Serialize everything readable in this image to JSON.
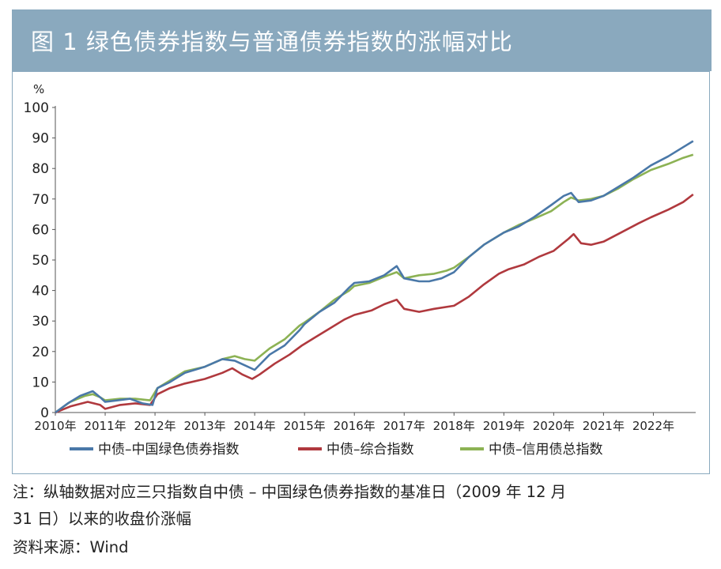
{
  "title": "图 1    绿色债券指数与普通债券指数的涨幅对比",
  "note_line1": "注：纵轴数据对应三只指数自中债 – 中国绿色债券指数的基准日（2009 年 12 月",
  "note_line2": "31 日）以来的收盘价涨幅",
  "source": "资料来源：Wind",
  "chart_data": {
    "type": "line",
    "ylabel": "%",
    "ylim": [
      0,
      100
    ],
    "yticks": [
      0,
      10,
      20,
      30,
      40,
      50,
      60,
      70,
      80,
      90,
      100
    ],
    "xlim": [
      2010,
      2022.85
    ],
    "xticks": [
      "2010年",
      "2011年",
      "2012年",
      "2013年",
      "2014年",
      "2015年",
      "2016年",
      "2017年",
      "2018年",
      "2019年",
      "2020年",
      "2021年",
      "2022年"
    ],
    "grid": false,
    "legend_position": "bottom",
    "series": [
      {
        "name": "中债–中国绿色债券指数",
        "color": "#4a78a8",
        "points": [
          [
            2010.0,
            0
          ],
          [
            2010.25,
            3
          ],
          [
            2010.5,
            5.5
          ],
          [
            2010.75,
            7
          ],
          [
            2010.9,
            5
          ],
          [
            2011.0,
            3.5
          ],
          [
            2011.25,
            4
          ],
          [
            2011.5,
            4.5
          ],
          [
            2011.75,
            3
          ],
          [
            2011.95,
            2.5
          ],
          [
            2012.05,
            8
          ],
          [
            2012.3,
            10
          ],
          [
            2012.6,
            13
          ],
          [
            2013.0,
            15
          ],
          [
            2013.35,
            17.5
          ],
          [
            2013.6,
            17
          ],
          [
            2013.8,
            15.5
          ],
          [
            2014.0,
            14
          ],
          [
            2014.3,
            19
          ],
          [
            2014.6,
            22
          ],
          [
            2014.9,
            27
          ],
          [
            2015.0,
            29
          ],
          [
            2015.3,
            33
          ],
          [
            2015.6,
            36
          ],
          [
            2015.9,
            41
          ],
          [
            2016.0,
            42.5
          ],
          [
            2016.3,
            43
          ],
          [
            2016.6,
            45
          ],
          [
            2016.85,
            48
          ],
          [
            2017.0,
            44
          ],
          [
            2017.3,
            43
          ],
          [
            2017.5,
            43
          ],
          [
            2017.75,
            44
          ],
          [
            2018.0,
            46
          ],
          [
            2018.3,
            51
          ],
          [
            2018.6,
            55
          ],
          [
            2018.9,
            58
          ],
          [
            2019.0,
            59
          ],
          [
            2019.3,
            61
          ],
          [
            2019.6,
            64
          ],
          [
            2019.95,
            68
          ],
          [
            2020.2,
            71
          ],
          [
            2020.35,
            72
          ],
          [
            2020.5,
            69
          ],
          [
            2020.75,
            69.5
          ],
          [
            2021.0,
            71
          ],
          [
            2021.3,
            74
          ],
          [
            2021.6,
            77
          ],
          [
            2021.95,
            81
          ],
          [
            2022.3,
            84
          ],
          [
            2022.6,
            87
          ],
          [
            2022.8,
            89
          ]
        ]
      },
      {
        "name": "中债–综合指数",
        "color": "#b0393e",
        "points": [
          [
            2010.0,
            0
          ],
          [
            2010.3,
            2
          ],
          [
            2010.65,
            3.5
          ],
          [
            2010.9,
            2.5
          ],
          [
            2011.0,
            1.2
          ],
          [
            2011.3,
            2.5
          ],
          [
            2011.6,
            3
          ],
          [
            2011.9,
            2.5
          ],
          [
            2012.05,
            6
          ],
          [
            2012.3,
            8
          ],
          [
            2012.6,
            9.5
          ],
          [
            2013.0,
            11
          ],
          [
            2013.35,
            13
          ],
          [
            2013.55,
            14.5
          ],
          [
            2013.75,
            12.5
          ],
          [
            2013.95,
            11
          ],
          [
            2014.1,
            12.5
          ],
          [
            2014.4,
            16
          ],
          [
            2014.7,
            19
          ],
          [
            2014.95,
            22
          ],
          [
            2015.2,
            24.5
          ],
          [
            2015.5,
            27.5
          ],
          [
            2015.8,
            30.5
          ],
          [
            2016.0,
            32
          ],
          [
            2016.35,
            33.5
          ],
          [
            2016.6,
            35.5
          ],
          [
            2016.85,
            37
          ],
          [
            2017.0,
            34
          ],
          [
            2017.3,
            33
          ],
          [
            2017.6,
            34
          ],
          [
            2018.0,
            35
          ],
          [
            2018.3,
            38
          ],
          [
            2018.6,
            42
          ],
          [
            2018.9,
            45.5
          ],
          [
            2019.1,
            47
          ],
          [
            2019.4,
            48.5
          ],
          [
            2019.7,
            51
          ],
          [
            2020.0,
            53
          ],
          [
            2020.3,
            57
          ],
          [
            2020.4,
            58.5
          ],
          [
            2020.55,
            55.5
          ],
          [
            2020.75,
            55
          ],
          [
            2021.0,
            56
          ],
          [
            2021.35,
            59
          ],
          [
            2021.7,
            62
          ],
          [
            2021.95,
            64
          ],
          [
            2022.3,
            66.5
          ],
          [
            2022.6,
            69
          ],
          [
            2022.8,
            71.5
          ]
        ]
      },
      {
        "name": "中债–信用债总指数",
        "color": "#8cb254",
        "points": [
          [
            2010.0,
            0
          ],
          [
            2010.3,
            3.5
          ],
          [
            2010.6,
            5.5
          ],
          [
            2010.75,
            6
          ],
          [
            2010.9,
            5
          ],
          [
            2011.0,
            4
          ],
          [
            2011.3,
            4.5
          ],
          [
            2011.6,
            4.5
          ],
          [
            2011.9,
            4
          ],
          [
            2012.05,
            8
          ],
          [
            2012.3,
            10.5
          ],
          [
            2012.6,
            13.5
          ],
          [
            2013.0,
            15
          ],
          [
            2013.35,
            17.5
          ],
          [
            2013.6,
            18.5
          ],
          [
            2013.8,
            17.5
          ],
          [
            2014.0,
            17
          ],
          [
            2014.3,
            21
          ],
          [
            2014.6,
            24
          ],
          [
            2014.9,
            28.5
          ],
          [
            2015.0,
            29.5
          ],
          [
            2015.3,
            33
          ],
          [
            2015.6,
            37
          ],
          [
            2015.9,
            40
          ],
          [
            2016.0,
            41.5
          ],
          [
            2016.3,
            42.5
          ],
          [
            2016.6,
            44.5
          ],
          [
            2016.85,
            46
          ],
          [
            2017.0,
            44
          ],
          [
            2017.3,
            45
          ],
          [
            2017.6,
            45.5
          ],
          [
            2017.85,
            46.5
          ],
          [
            2018.0,
            47.5
          ],
          [
            2018.3,
            51
          ],
          [
            2018.6,
            55
          ],
          [
            2018.9,
            58
          ],
          [
            2019.0,
            59
          ],
          [
            2019.3,
            61.5
          ],
          [
            2019.6,
            63.5
          ],
          [
            2019.95,
            66
          ],
          [
            2020.2,
            69
          ],
          [
            2020.35,
            70.5
          ],
          [
            2020.5,
            69.5
          ],
          [
            2020.75,
            70
          ],
          [
            2021.0,
            71
          ],
          [
            2021.3,
            73.5
          ],
          [
            2021.6,
            76.5
          ],
          [
            2021.95,
            79.5
          ],
          [
            2022.3,
            81.5
          ],
          [
            2022.6,
            83.5
          ],
          [
            2022.8,
            84.5
          ]
        ]
      }
    ]
  }
}
